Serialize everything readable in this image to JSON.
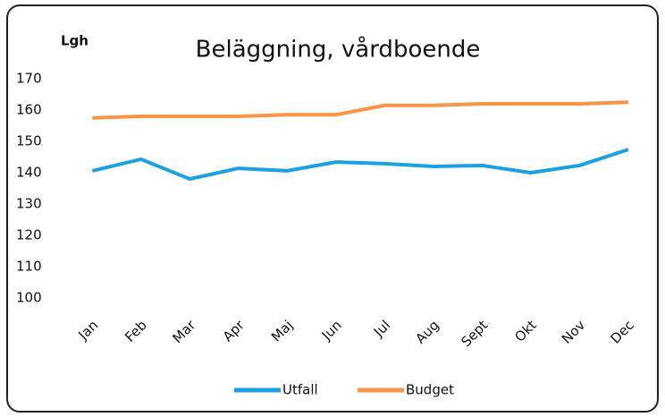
{
  "chart_data": {
    "type": "line",
    "title": "Beläggning, vårdboende",
    "ylabel": "Lgh",
    "categories": [
      "Jan",
      "Feb",
      "Mar",
      "Apr",
      "Maj",
      "Jun",
      "Jul",
      "Aug",
      "Sept",
      "Okt",
      "Nov",
      "Dec"
    ],
    "series": [
      {
        "name": "Utfall",
        "color": "#1ba1e2",
        "values": [
          140.6,
          144.3,
          138,
          141.4,
          140.6,
          143.4,
          142.9,
          142,
          142.3,
          140,
          142.3,
          147.4
        ]
      },
      {
        "name": "Budget",
        "color": "#f79646",
        "values": [
          157.5,
          158,
          158,
          158,
          158.5,
          158.5,
          161.5,
          161.5,
          162,
          162,
          162,
          162.5
        ]
      }
    ],
    "ylim": [
      100,
      170
    ],
    "yticks": [
      100,
      110,
      120,
      130,
      140,
      150,
      160,
      170
    ],
    "grid": false,
    "legend": "bottom"
  }
}
